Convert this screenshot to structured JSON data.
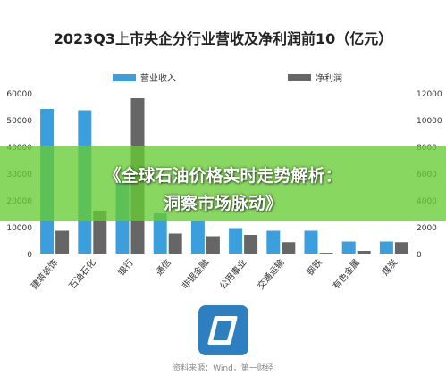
{
  "chart_data": {
    "type": "bar",
    "title": "2023Q3上市央企分行业营收及净利润前10（亿元）",
    "categories": [
      "建筑装饰",
      "石油石化",
      "银行",
      "通信",
      "非银金融",
      "公用事业",
      "交通运输",
      "钢铁",
      "有色金属",
      "煤炭"
    ],
    "series": [
      {
        "name": "营业收入",
        "axis": "left",
        "values": [
          54000,
          53500,
          27000,
          15000,
          12000,
          9500,
          8500,
          8500,
          4500,
          4500
        ]
      },
      {
        "name": "净利润",
        "axis": "right",
        "values": [
          1700,
          3200,
          11600,
          1500,
          1300,
          1400,
          850,
          60,
          200,
          850
        ]
      }
    ],
    "ylim_left": [
      0,
      60000
    ],
    "ylim_right": [
      0,
      12000
    ],
    "yticks_left": [
      0,
      10000,
      20000,
      30000,
      40000,
      50000,
      60000
    ],
    "yticks_right": [
      0,
      2000,
      4000,
      6000,
      8000,
      10000,
      12000
    ],
    "legend_position": "top",
    "grid": false,
    "colors": {
      "revenue": "#3a9fdc",
      "profit": "#666666"
    }
  },
  "banner": {
    "line1": "《全球石油价格实时走势解析：",
    "line2": "洞察市场脉动》"
  },
  "source": "资料来源：Wind，第一财经"
}
